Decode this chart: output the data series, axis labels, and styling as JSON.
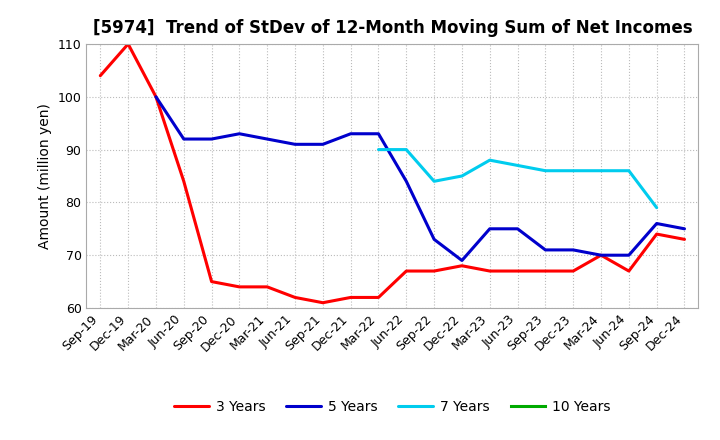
{
  "title": "[5974]  Trend of StDev of 12-Month Moving Sum of Net Incomes",
  "ylabel": "Amount (million yen)",
  "ylim": [
    60,
    110
  ],
  "yticks": [
    60,
    70,
    80,
    90,
    100,
    110
  ],
  "background_color": "#ffffff",
  "plot_bg_color": "#ffffff",
  "grid_color": "#bbbbbb",
  "x_labels": [
    "Sep-19",
    "Dec-19",
    "Mar-20",
    "Jun-20",
    "Sep-20",
    "Dec-20",
    "Mar-21",
    "Jun-21",
    "Sep-21",
    "Dec-21",
    "Mar-22",
    "Jun-22",
    "Sep-22",
    "Dec-22",
    "Mar-23",
    "Jun-23",
    "Sep-23",
    "Dec-23",
    "Mar-24",
    "Jun-24",
    "Sep-24",
    "Dec-24"
  ],
  "series": [
    {
      "name": "3 Years",
      "color": "#ff0000",
      "linewidth": 2.2,
      "data": [
        104,
        110,
        100,
        84,
        65,
        64,
        64,
        62,
        61,
        62,
        62,
        67,
        67,
        68,
        67,
        67,
        67,
        67,
        70,
        67,
        74,
        73
      ]
    },
    {
      "name": "5 Years",
      "color": "#0000cc",
      "linewidth": 2.2,
      "data": [
        null,
        null,
        100,
        92,
        92,
        93,
        92,
        91,
        91,
        93,
        93,
        84,
        73,
        69,
        75,
        75,
        71,
        71,
        70,
        70,
        76,
        75
      ]
    },
    {
      "name": "7 Years",
      "color": "#00ccee",
      "linewidth": 2.2,
      "data": [
        null,
        null,
        null,
        null,
        null,
        null,
        null,
        null,
        null,
        null,
        90,
        90,
        84,
        85,
        88,
        87,
        86,
        86,
        86,
        86,
        79,
        null
      ]
    },
    {
      "name": "10 Years",
      "color": "#00aa00",
      "linewidth": 2.2,
      "data": [
        null,
        null,
        null,
        null,
        null,
        null,
        null,
        null,
        null,
        null,
        null,
        null,
        null,
        null,
        null,
        null,
        null,
        null,
        null,
        null,
        null,
        null
      ]
    }
  ],
  "title_fontsize": 12,
  "label_fontsize": 10,
  "tick_fontsize": 9,
  "legend_fontsize": 10
}
